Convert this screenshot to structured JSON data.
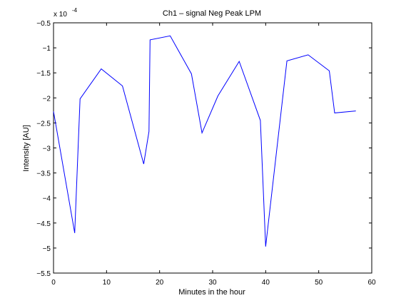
{
  "chart_data": {
    "type": "line",
    "title": "Ch1 – signal Neg Peak LPM",
    "xlabel": "Minutes in the hour",
    "ylabel": "Intensity [AU]",
    "y_multiplier_label": "x 10",
    "y_multiplier_exponent": "-4",
    "xlim": [
      0,
      60
    ],
    "ylim": [
      -5.5,
      -0.5
    ],
    "x_ticks": [
      0,
      10,
      20,
      30,
      40,
      50,
      60
    ],
    "x_tick_labels": [
      "0",
      "10",
      "20",
      "30",
      "40",
      "50",
      "60"
    ],
    "y_ticks": [
      -0.5,
      -1,
      -1.5,
      -2,
      -2.5,
      -3,
      -3.5,
      -4,
      -4.5,
      -5,
      -5.5
    ],
    "y_tick_labels": [
      "−0.5",
      "−1",
      "−1.5",
      "−2",
      "−2.5",
      "−3",
      "−3.5",
      "−4",
      "−4.5",
      "−5",
      "−5.5"
    ],
    "grid": false,
    "series": [
      {
        "color": "#0000ff",
        "x": [
          0,
          4,
          5,
          9,
          13,
          17,
          18,
          18.2,
          22,
          26,
          28,
          31,
          35,
          39,
          40,
          44,
          48,
          52,
          53,
          57
        ],
        "y": [
          -2.27,
          -4.7,
          -2.02,
          -1.42,
          -1.76,
          -3.32,
          -2.67,
          -0.84,
          -0.76,
          -1.52,
          -2.7,
          -1.96,
          -1.27,
          -2.45,
          -4.97,
          -1.26,
          -1.14,
          -1.46,
          -2.3,
          -2.26
        ]
      }
    ]
  }
}
